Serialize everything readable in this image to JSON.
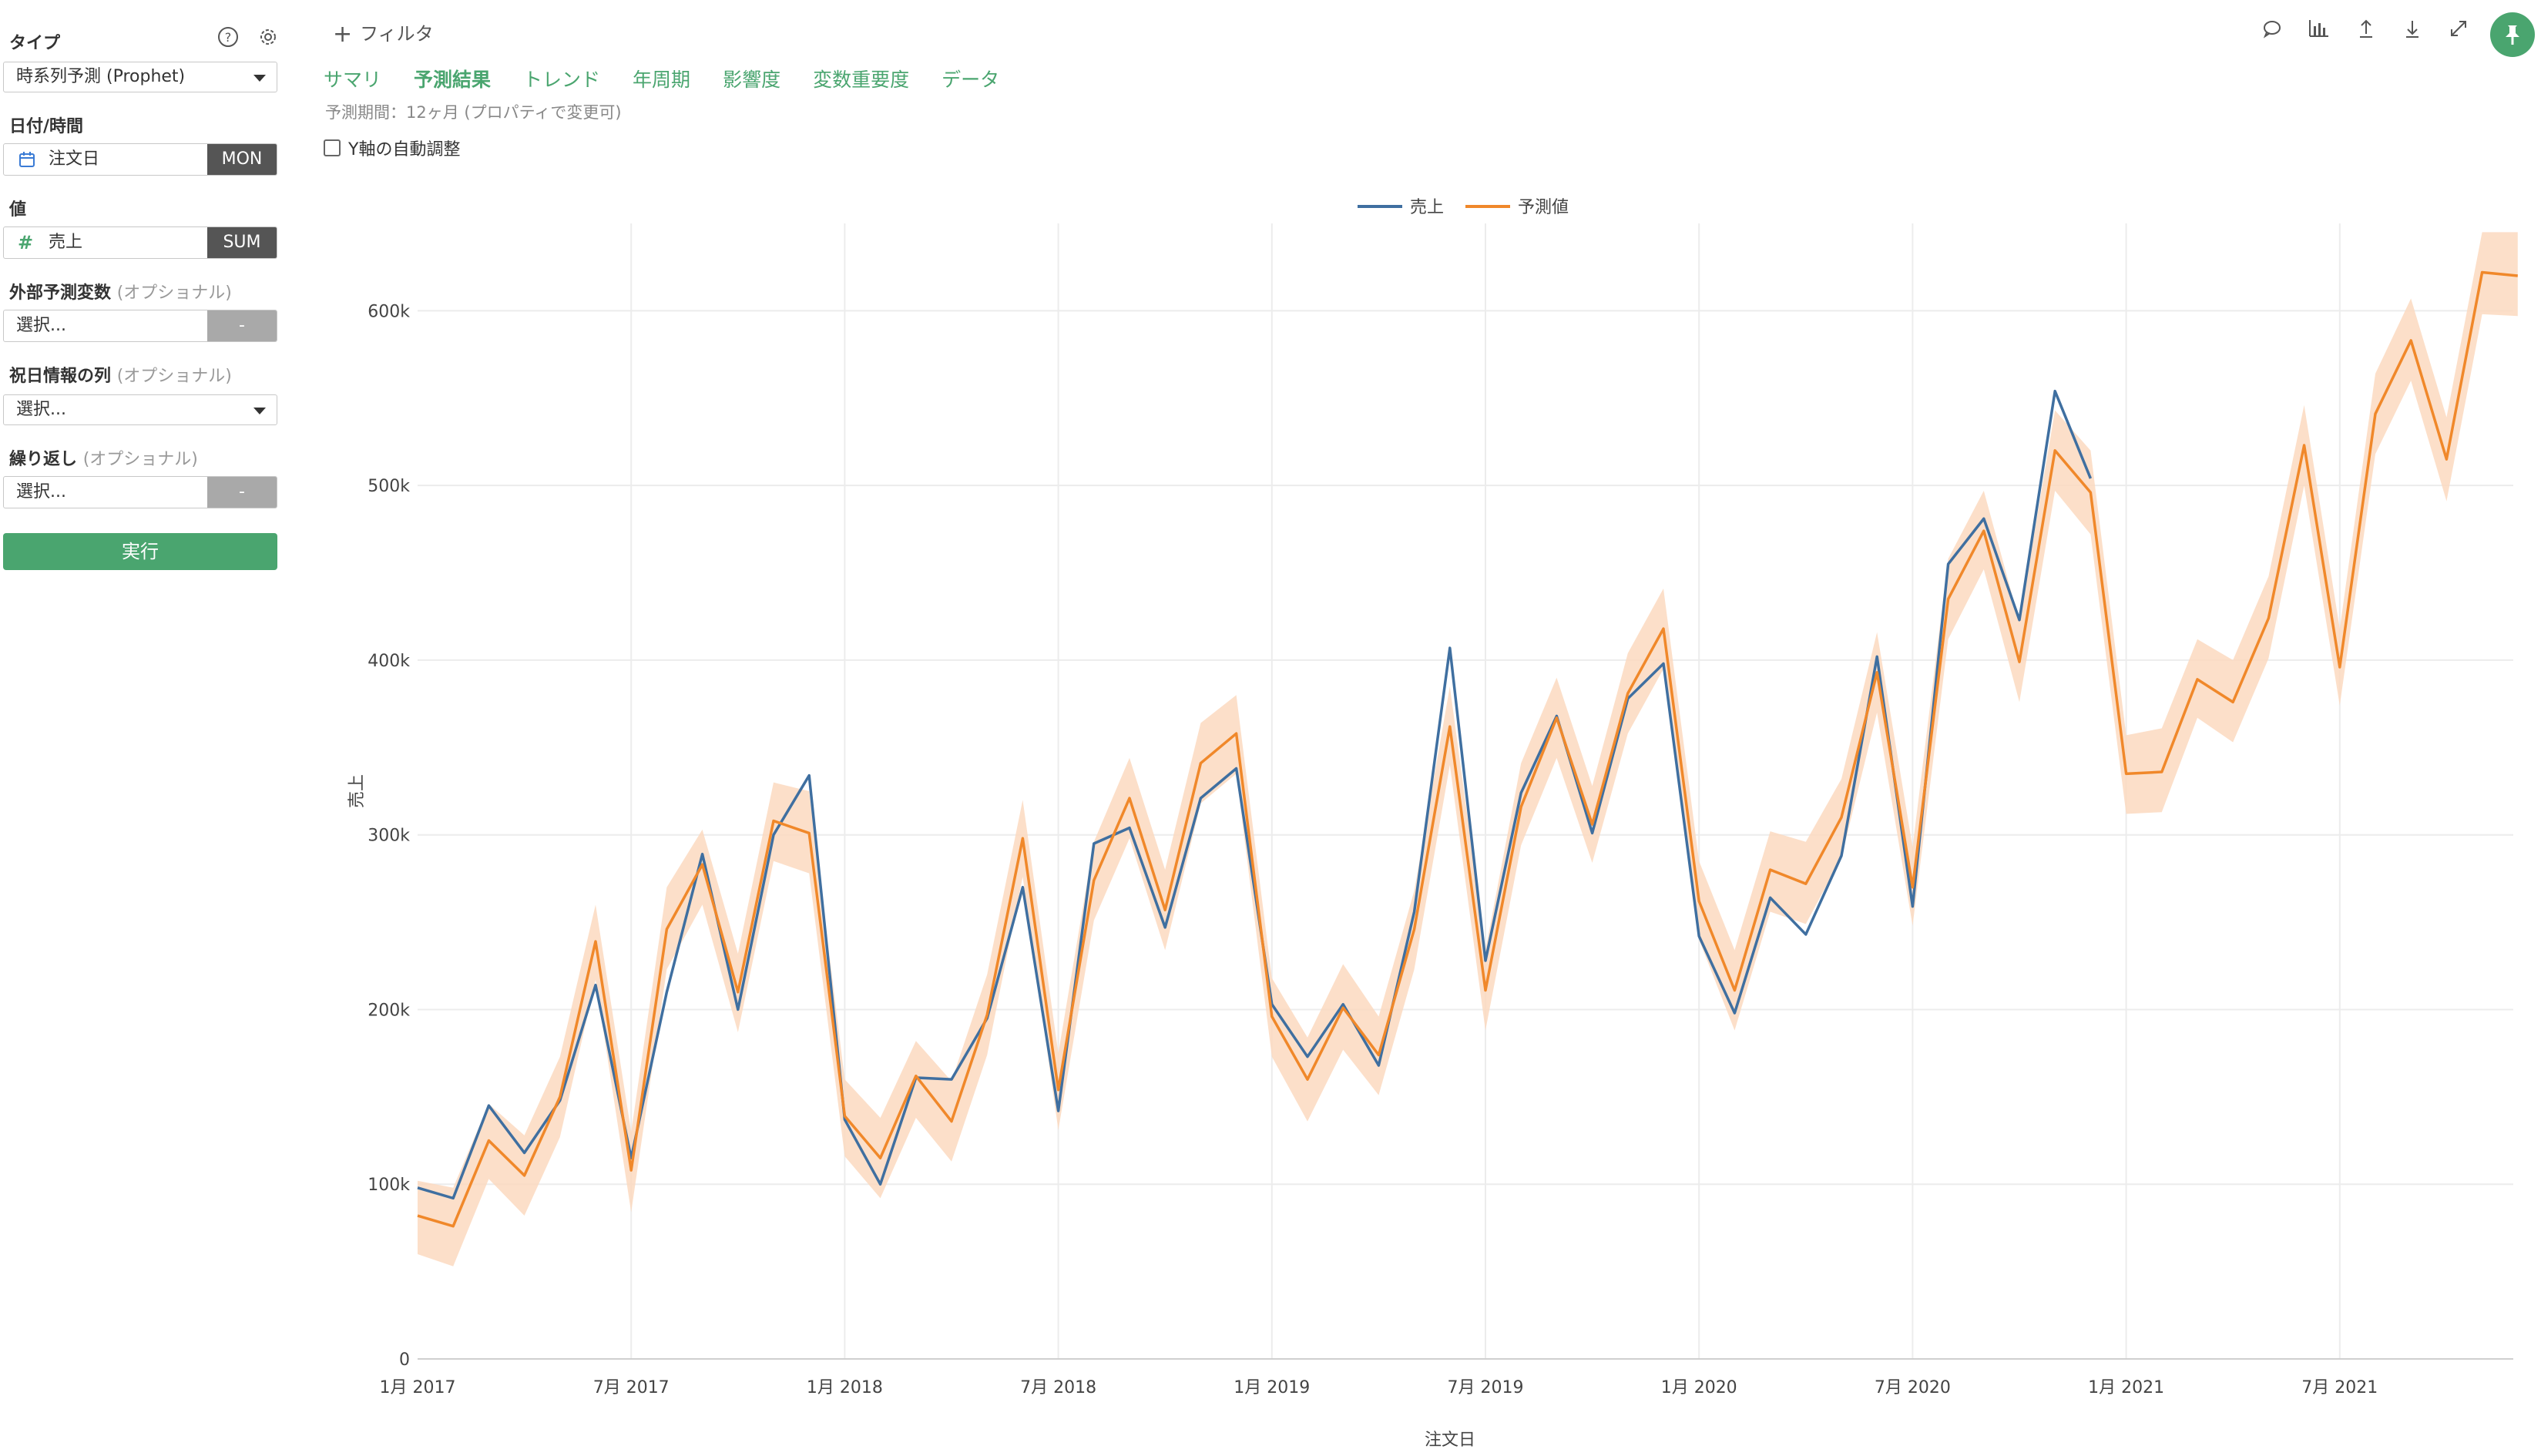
{
  "sidebar": {
    "type_label": "タイプ",
    "type_value": "時系列予測 (Prophet)",
    "date_label": "日付/時間",
    "date_field": "注文日",
    "date_unit": "MON",
    "value_label": "値",
    "value_field": "売上",
    "value_agg": "SUM",
    "external_label": "外部予測変数",
    "external_optional": "(オプショナル)",
    "external_value": "選択...",
    "external_btn": "-",
    "holiday_label": "祝日情報の列",
    "holiday_optional": "(オプショナル)",
    "holiday_value": "選択...",
    "repeat_label": "繰り返し",
    "repeat_optional": "(オプショナル)",
    "repeat_value": "選択...",
    "repeat_btn": "-",
    "run_label": "実行"
  },
  "icons": {
    "help": "question-circle-icon",
    "settings": "gear-icon",
    "calendar": "calendar-icon",
    "number": "hash-icon",
    "comment": "comment-icon",
    "chart": "bar-chart-icon",
    "upload": "upload-icon",
    "download": "download-icon",
    "expand": "expand-icon",
    "pin": "pin-icon"
  },
  "filter_label": "フィルタ",
  "tabs": [
    "サマリ",
    "予測結果",
    "トレンド",
    "年周期",
    "影響度",
    "変数重要度",
    "データ"
  ],
  "active_tab": "予測結果",
  "period_note": "予測期間：12ヶ月 (プロパティで変更可)",
  "y_auto_label": "Y軸の自動調整",
  "colors": {
    "actual": "#3f6fa0",
    "forecast": "#f0882a",
    "band": "#fbd9bf",
    "accent": "#4aa56f"
  },
  "chart_data": {
    "type": "line",
    "xlabel": "注文日",
    "ylabel": "売上",
    "legend_position": "top-center",
    "grid": true,
    "ylim": [
      0,
      650000
    ],
    "yticks": [
      0,
      100000,
      200000,
      300000,
      400000,
      500000,
      600000
    ],
    "ytick_labels": [
      "0",
      "100k",
      "200k",
      "300k",
      "400k",
      "500k",
      "600k"
    ],
    "xtick_labels": [
      "1月 2017",
      "7月 2017",
      "1月 2018",
      "7月 2018",
      "1月 2019",
      "7月 2019",
      "1月 2020",
      "7月 2020",
      "1月 2021",
      "7月 2021"
    ],
    "x_start": "2017-01",
    "series": [
      {
        "name": "売上",
        "values": [
          98000,
          92000,
          145000,
          118000,
          148000,
          214000,
          115000,
          210000,
          289000,
          200000,
          300000,
          334000,
          137000,
          100000,
          161000,
          160000,
          195000,
          270000,
          142000,
          295000,
          304000,
          247000,
          321000,
          338000,
          203000,
          173000,
          203000,
          168000,
          256000,
          407000,
          228000,
          324000,
          368000,
          301000,
          378000,
          398000,
          242000,
          198000,
          264000,
          243000,
          288000,
          402000,
          259000,
          455000,
          481000,
          423000,
          554000,
          504000
        ]
      },
      {
        "name": "予測値",
        "values": [
          82000,
          76000,
          125000,
          105000,
          150000,
          239000,
          108000,
          246000,
          283000,
          210000,
          308000,
          301000,
          139000,
          115000,
          162000,
          136000,
          197000,
          298000,
          154000,
          274000,
          321000,
          257000,
          341000,
          358000,
          196000,
          160000,
          201000,
          174000,
          246000,
          362000,
          211000,
          316000,
          367000,
          306000,
          381000,
          418000,
          262000,
          211000,
          280000,
          272000,
          310000,
          393000,
          270000,
          435000,
          474000,
          399000,
          520000,
          496000,
          335000,
          336000,
          389000,
          376000,
          424000,
          523000,
          396000,
          541000,
          583000,
          515000,
          622000,
          620000
        ],
        "upper": [
          102000,
          98000,
          146000,
          128000,
          173000,
          260000,
          130000,
          270000,
          303000,
          232000,
          330000,
          325000,
          160000,
          138000,
          182000,
          159000,
          220000,
          320000,
          175000,
          296000,
          344000,
          280000,
          364000,
          380000,
          218000,
          184000,
          226000,
          196000,
          268000,
          385000,
          234000,
          341000,
          390000,
          328000,
          404000,
          441000,
          285000,
          234000,
          302000,
          296000,
          332000,
          416000,
          293000,
          458000,
          497000,
          422000,
          543000,
          520000,
          357000,
          361000,
          412000,
          400000,
          448000,
          546000,
          418000,
          564000,
          607000,
          539000,
          645000,
          645000
        ],
        "lower": [
          60000,
          53000,
          103000,
          82000,
          127000,
          217000,
          84000,
          223000,
          260000,
          187000,
          285000,
          278000,
          116000,
          92000,
          138000,
          113000,
          174000,
          276000,
          131000,
          251000,
          298000,
          234000,
          318000,
          335000,
          173000,
          136000,
          177000,
          151000,
          223000,
          340000,
          188000,
          294000,
          344000,
          284000,
          358000,
          395000,
          240000,
          188000,
          256000,
          249000,
          287000,
          370000,
          248000,
          412000,
          452000,
          376000,
          497000,
          472000,
          312000,
          313000,
          367000,
          353000,
          401000,
          500000,
          374000,
          518000,
          560000,
          491000,
          598000,
          597000
        ]
      }
    ]
  }
}
